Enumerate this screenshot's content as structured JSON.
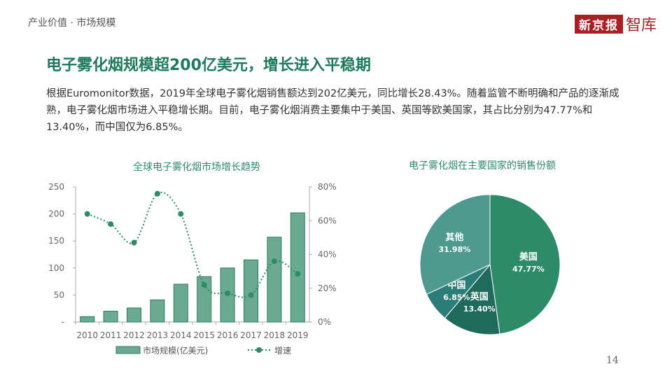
{
  "header": {
    "breadcrumb": "产业价值 · 市场规模",
    "logo_text": "新京报智库"
  },
  "title": "电子雾化烟规模超200亿美元，增长进入平稳期",
  "paragraph": "根据Euromonitor数据，2019年全球电子雾化烟销售额达到202亿美元，同比增长28.43%。随着监管不断明确和产品的逐渐成熟，电子雾化烟市场进入平稳增长期。目前，电子雾化烟消费主要集中于美国、英国等欧美国家，其占比分别为47.77%和13.40%，而中国仅为6.85%。",
  "page_number": "14",
  "chart_data": [
    {
      "type": "bar+line",
      "title": "全球电子雾化烟市场增长趋势",
      "categories": [
        "2010",
        "2011",
        "2012",
        "2013",
        "2014",
        "2015",
        "2016",
        "2017",
        "2018",
        "2019"
      ],
      "series": [
        {
          "name": "市场规模(亿美元)",
          "type": "bar",
          "axis": "left",
          "values": [
            10,
            20,
            26,
            41,
            70,
            84,
            100,
            115,
            157,
            202
          ],
          "color": "#6aaa93"
        },
        {
          "name": "增速",
          "type": "line",
          "axis": "right",
          "values": [
            64,
            58,
            47,
            76,
            64,
            22,
            17,
            16,
            36,
            28.43
          ],
          "color": "#2e8b6a"
        }
      ],
      "left_axis": {
        "ylim": [
          0,
          250
        ],
        "ticks": [
          "-",
          "50",
          "100",
          "150",
          "200",
          "250"
        ]
      },
      "right_axis": {
        "ylim": [
          0,
          80
        ],
        "ticks": [
          "0%",
          "20%",
          "40%",
          "60%",
          "80%"
        ]
      },
      "legend": "bottom",
      "grid": false
    },
    {
      "type": "pie",
      "title": "电子雾化烟在主要国家的销售份额",
      "slices": [
        {
          "label": "美国",
          "value": 47.77,
          "text": "47.77%",
          "color": "#2e8b6a"
        },
        {
          "label": "英国",
          "value": 13.4,
          "text": "13.40%",
          "color": "#1f6a5c"
        },
        {
          "label": "中国",
          "value": 6.85,
          "text": "6.85%",
          "color": "#2a7d78"
        },
        {
          "label": "其他",
          "value": 31.98,
          "text": "31.98%",
          "color": "#4e9a8e"
        }
      ]
    }
  ]
}
